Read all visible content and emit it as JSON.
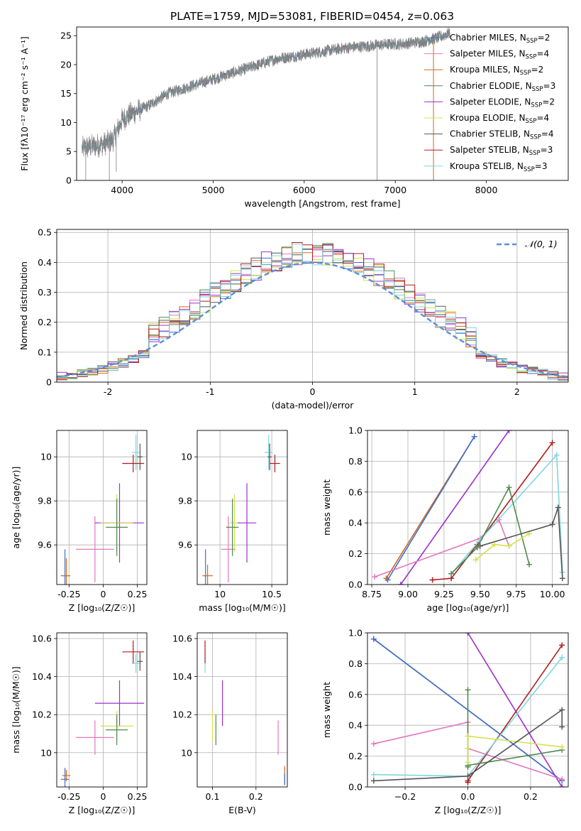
{
  "title": "PLATE=1759, MJD=53081, FIBERID=0454, z=0.063",
  "colors": {
    "chabrier_miles": "#3b6fd4",
    "salpeter_miles": "#e377c2",
    "kroupa_miles": "#d2691e",
    "chabrier_elodie": "#4f8a4f",
    "salpeter_elodie": "#9b30c8",
    "kroupa_elodie": "#d4e24a",
    "chabrier_stelib": "#555555",
    "salpeter_stelib": "#b01c1c",
    "kroupa_stelib": "#7fd6e0",
    "data": "#808080",
    "normal": "#5b8fd9"
  },
  "chart_data": [
    {
      "id": "spectrum",
      "type": "line",
      "title": "PLATE=1759, MJD=53081, FIBERID=0454, z=0.063",
      "xlabel": "wavelength [Angstrom, rest frame]",
      "ylabel": "Flux [fλ10⁻¹⁷ erg cm⁻² s⁻¹ A⁻¹]",
      "xlim": [
        3500,
        8900
      ],
      "ylim": [
        0,
        26.5
      ],
      "xticks": [
        4000,
        5000,
        6000,
        7000,
        8000
      ],
      "yticks": [
        0,
        5,
        10,
        15,
        20,
        25
      ],
      "grid": false,
      "legend_position": "right",
      "legend": [
        {
          "key": "chabrier_miles",
          "label": "Chabrier MILES, N_SSP=2",
          "main": "Chabrier MILES, N",
          "sub": "SSP",
          "tail": "=2"
        },
        {
          "key": "salpeter_miles",
          "label": "Salpeter MILES, N_SSP=4",
          "main": "Salpeter MILES, N",
          "sub": "SSP",
          "tail": "=4"
        },
        {
          "key": "kroupa_miles",
          "label": "Kroupa MILES, N_SSP=2",
          "main": "Kroupa MILES, N",
          "sub": "SSP",
          "tail": "=2"
        },
        {
          "key": "chabrier_elodie",
          "label": "Chabrier ELODIE, N_SSP=3",
          "main": "Chabrier ELODIE, N",
          "sub": "SSP",
          "tail": "=3"
        },
        {
          "key": "salpeter_elodie",
          "label": "Salpeter ELODIE, N_SSP=2",
          "main": "Salpeter ELODIE, N",
          "sub": "SSP",
          "tail": "=2"
        },
        {
          "key": "kroupa_elodie",
          "label": "Kroupa ELODIE, N_SSP=4",
          "main": "Kroupa ELODIE, N",
          "sub": "SSP",
          "tail": "=4"
        },
        {
          "key": "chabrier_stelib",
          "label": "Chabrier STELIB, N_SSP=4",
          "main": "Chabrier STELIB, N",
          "sub": "SSP",
          "tail": "=4"
        },
        {
          "key": "salpeter_stelib",
          "label": "Salpeter STELIB, N_SSP=3",
          "main": "Salpeter STELIB, N",
          "sub": "SSP",
          "tail": "=3"
        },
        {
          "key": "kroupa_stelib",
          "label": "Kroupa STELIB, N_SSP=3",
          "main": "Kroupa STELIB, N",
          "sub": "SSP",
          "tail": "=3"
        }
      ],
      "continuum": {
        "x": [
          3560,
          3700,
          3800,
          3900,
          4000,
          4100,
          4300,
          4500,
          4700,
          4900,
          5100,
          5300,
          5500,
          5700,
          5900,
          6100,
          6300,
          6500,
          6700,
          6900,
          7100,
          7300,
          7500,
          7600
        ],
        "y": [
          5.5,
          6.0,
          6.3,
          7.0,
          10.5,
          11.5,
          13.0,
          15.0,
          16.0,
          17.0,
          18.0,
          19.0,
          20.0,
          21.0,
          21.5,
          22.0,
          22.5,
          23.0,
          23.2,
          23.5,
          23.6,
          24.0,
          24.8,
          25.5
        ]
      },
      "spikes": [
        {
          "x": 3600,
          "bottom": 0
        },
        {
          "x": 3860,
          "bottom": 0
        },
        {
          "x": 3935,
          "bottom": 1.5
        },
        {
          "x": 6800,
          "bottom": 0
        },
        {
          "x": 7420,
          "bottom": 0
        }
      ]
    },
    {
      "id": "residuals",
      "type": "histogram",
      "xlabel": "(data-model)/error",
      "ylabel": "Normed distribution",
      "xlim": [
        -2.5,
        2.5
      ],
      "ylim": [
        0,
        0.51
      ],
      "xticks": [
        -2,
        -1,
        0,
        1,
        2
      ],
      "yticks": [
        0,
        0.1,
        0.2,
        0.3,
        0.4,
        0.5
      ],
      "grid": true,
      "legend_position": "upper right",
      "legend_label": "𝒩(0, 1)",
      "bin_width": 0.1,
      "reference_curve": "standard normal, mean 0, sd 1"
    },
    {
      "id": "age_vs_Z",
      "type": "scatter",
      "xlabel": "Z [log₁₀(Z/Z☉)]",
      "ylabel": "age  [log₁₀(age/yr)]",
      "xlim": [
        -0.34,
        0.32
      ],
      "ylim": [
        9.42,
        10.12
      ],
      "xticks": [
        -0.25,
        0.0,
        0.25
      ],
      "yticks": [
        9.6,
        9.8,
        10.0
      ],
      "grid": true,
      "points": [
        {
          "key": "chabrier_miles",
          "x": -0.28,
          "y": 9.46,
          "xerr": 0.03,
          "yerr": 0.12
        },
        {
          "key": "kroupa_miles",
          "x": -0.27,
          "y": 9.46,
          "xerr": 0.03,
          "yerr": 0.08
        },
        {
          "key": "salpeter_miles",
          "x": -0.06,
          "y": 9.58,
          "xerr": 0.14,
          "yerr": 0.15
        },
        {
          "key": "salpeter_elodie",
          "x": 0.12,
          "y": 9.7,
          "xerr": 0.18,
          "yerr": 0.18
        },
        {
          "key": "kroupa_elodie",
          "x": 0.1,
          "y": 9.7,
          "xerr": 0.12,
          "yerr": 0.13
        },
        {
          "key": "chabrier_elodie",
          "x": 0.1,
          "y": 9.68,
          "xerr": 0.08,
          "yerr": 0.13
        },
        {
          "key": "kroupa_stelib",
          "x": 0.24,
          "y": 10.02,
          "xerr": 0.03,
          "yerr": 0.08
        },
        {
          "key": "chabrier_stelib",
          "x": 0.27,
          "y": 10.0,
          "xerr": 0.02,
          "yerr": 0.06
        },
        {
          "key": "salpeter_stelib",
          "x": 0.22,
          "y": 9.97,
          "xerr": 0.08,
          "yerr": 0.04
        }
      ]
    },
    {
      "id": "age_vs_mass",
      "type": "scatter",
      "xlabel": "mass [log₁₀(M/M☉)]",
      "ylabel": "",
      "xlim": [
        9.78,
        10.65
      ],
      "ylim": [
        9.42,
        10.12
      ],
      "xticks": [
        10.0,
        10.5
      ],
      "yticks": [
        9.6,
        9.8,
        10.0
      ],
      "grid": true,
      "points": [
        {
          "key": "chabrier_miles",
          "x": 9.86,
          "y": 9.46,
          "xerr": 0.02,
          "yerr": 0.12
        },
        {
          "key": "kroupa_miles",
          "x": 9.88,
          "y": 9.46,
          "xerr": 0.05,
          "yerr": 0.05
        },
        {
          "key": "salpeter_miles",
          "x": 10.08,
          "y": 9.58,
          "xerr": 0.07,
          "yerr": 0.15
        },
        {
          "key": "kroupa_elodie",
          "x": 10.14,
          "y": 9.7,
          "xerr": 0.05,
          "yerr": 0.13
        },
        {
          "key": "chabrier_elodie",
          "x": 10.12,
          "y": 9.68,
          "xerr": 0.06,
          "yerr": 0.13
        },
        {
          "key": "salpeter_elodie",
          "x": 10.26,
          "y": 9.7,
          "xerr": 0.09,
          "yerr": 0.18
        },
        {
          "key": "kroupa_stelib",
          "x": 10.47,
          "y": 10.02,
          "xerr": 0.04,
          "yerr": 0.08
        },
        {
          "key": "chabrier_stelib",
          "x": 10.48,
          "y": 10.0,
          "xerr": 0.02,
          "yerr": 0.06
        },
        {
          "key": "salpeter_stelib",
          "x": 10.53,
          "y": 9.97,
          "xerr": 0.05,
          "yerr": 0.04
        }
      ]
    },
    {
      "id": "weight_vs_age",
      "type": "line",
      "xlabel": "age  [log₁₀(age/yr)]",
      "ylabel": "mass weight",
      "xlim": [
        8.72,
        10.11
      ],
      "ylim": [
        0,
        1
      ],
      "xticks": [
        "8.75",
        "9.00",
        "9.25",
        "9.50",
        "9.75",
        "10.00"
      ],
      "yticks": [
        "0.0",
        "0.2",
        "0.4",
        "0.6",
        "0.8",
        "1.0"
      ],
      "grid": true,
      "series": [
        {
          "key": "kroupa_miles",
          "x": [
            8.85,
            9.46
          ],
          "y": [
            0.04,
            0.96
          ]
        },
        {
          "key": "chabrier_miles",
          "x": [
            8.86,
            9.46
          ],
          "y": [
            0.03,
            0.96
          ]
        },
        {
          "key": "salpeter_elodie",
          "x": [
            8.95,
            9.7
          ],
          "y": [
            0.0,
            1.0
          ]
        },
        {
          "key": "salpeter_miles",
          "x": [
            8.77,
            9.5,
            9.63,
            9.7
          ],
          "y": [
            0.05,
            0.3,
            0.42,
            0.25
          ]
        },
        {
          "key": "salpeter_stelib",
          "x": [
            9.17,
            9.3,
            9.48,
            10.0
          ],
          "y": [
            0.03,
            0.04,
            0.26,
            0.92
          ]
        },
        {
          "key": "kroupa_stelib",
          "x": [
            9.3,
            9.5,
            10.03,
            10.07
          ],
          "y": [
            0.07,
            0.29,
            0.84,
            0.08
          ]
        },
        {
          "key": "chabrier_elodie",
          "x": [
            9.3,
            9.48,
            9.7,
            9.84
          ],
          "y": [
            0.07,
            0.24,
            0.63,
            0.13
          ]
        },
        {
          "key": "kroupa_elodie",
          "x": [
            9.47,
            9.6,
            9.7,
            9.84
          ],
          "y": [
            0.16,
            0.26,
            0.25,
            0.33
          ]
        },
        {
          "key": "chabrier_stelib",
          "x": [
            9.5,
            10.0,
            10.04,
            10.07
          ],
          "y": [
            0.25,
            0.39,
            0.5,
            0.04
          ]
        }
      ]
    },
    {
      "id": "mass_vs_Z",
      "type": "scatter",
      "xlabel": "Z [log₁₀(Z/Z☉)]",
      "ylabel": "mass [log₁₀(M/M☉)]",
      "xlim": [
        -0.34,
        0.32
      ],
      "ylim": [
        9.82,
        10.63
      ],
      "xticks": [
        -0.25,
        0.0,
        0.25
      ],
      "yticks": [
        10.0,
        10.2,
        10.4,
        10.6
      ],
      "grid": true,
      "points": [
        {
          "key": "chabrier_miles",
          "x": -0.28,
          "y": 9.86,
          "xerr": 0.03,
          "yerr": 0.06
        },
        {
          "key": "kroupa_miles",
          "x": -0.27,
          "y": 9.88,
          "xerr": 0.03,
          "yerr": 0.03
        },
        {
          "key": "salpeter_miles",
          "x": -0.06,
          "y": 10.08,
          "xerr": 0.14,
          "yerr": 0.09
        },
        {
          "key": "salpeter_elodie",
          "x": 0.12,
          "y": 10.26,
          "xerr": 0.18,
          "yerr": 0.12
        },
        {
          "key": "kroupa_elodie",
          "x": 0.1,
          "y": 10.14,
          "xerr": 0.12,
          "yerr": 0.08
        },
        {
          "key": "chabrier_elodie",
          "x": 0.1,
          "y": 10.12,
          "xerr": 0.08,
          "yerr": 0.08
        },
        {
          "key": "kroupa_stelib",
          "x": 0.24,
          "y": 10.47,
          "xerr": 0.03,
          "yerr": 0.05
        },
        {
          "key": "chabrier_stelib",
          "x": 0.27,
          "y": 10.48,
          "xerr": 0.02,
          "yerr": 0.05
        },
        {
          "key": "salpeter_stelib",
          "x": 0.22,
          "y": 10.53,
          "xerr": 0.08,
          "yerr": 0.06
        }
      ]
    },
    {
      "id": "mass_vs_ebv",
      "type": "scatter",
      "xlabel": "E(B-V)",
      "ylabel": "",
      "xlim": [
        0.065,
        0.272
      ],
      "ylim": [
        9.82,
        10.63
      ],
      "xticks": [
        0.1,
        0.2
      ],
      "yticks": [
        10.0,
        10.2,
        10.4,
        10.6
      ],
      "grid": true,
      "points": [
        {
          "key": "kroupa_stelib",
          "x": 0.083,
          "y": 10.47,
          "xerr": 0,
          "yerr": 0.05
        },
        {
          "key": "salpeter_stelib",
          "x": 0.083,
          "y": 10.53,
          "xerr": 0,
          "yerr": 0.06
        },
        {
          "key": "kroupa_elodie",
          "x": 0.1,
          "y": 10.14,
          "xerr": 0,
          "yerr": 0.08
        },
        {
          "key": "chabrier_elodie",
          "x": 0.108,
          "y": 10.12,
          "xerr": 0,
          "yerr": 0.08
        },
        {
          "key": "salpeter_elodie",
          "x": 0.123,
          "y": 10.26,
          "xerr": 0,
          "yerr": 0.12
        },
        {
          "key": "salpeter_miles",
          "x": 0.251,
          "y": 10.08,
          "xerr": 0,
          "yerr": 0.09
        },
        {
          "key": "kroupa_miles",
          "x": 0.266,
          "y": 9.88,
          "xerr": 0,
          "yerr": 0.05
        },
        {
          "key": "chabrier_miles",
          "x": 0.266,
          "y": 9.86,
          "xerr": 0,
          "yerr": 0.03
        }
      ]
    },
    {
      "id": "weight_vs_Z",
      "type": "line",
      "xlabel": "Z [log₁₀(Z/Z☉)]",
      "ylabel": "mass weight",
      "xlim": [
        -0.32,
        0.32
      ],
      "ylim": [
        0,
        1
      ],
      "xticks": [
        "−0.2",
        "0.0",
        "0.2"
      ],
      "yticks": [
        "0.0",
        "0.2",
        "0.4",
        "0.6",
        "0.8",
        "1.0"
      ],
      "grid": true,
      "series": [
        {
          "key": "kroupa_miles",
          "x": [
            -0.3,
            0.3
          ],
          "y": [
            0.96,
            0.04
          ]
        },
        {
          "key": "chabrier_miles",
          "x": [
            -0.3,
            0.3
          ],
          "y": [
            0.96,
            0.04
          ]
        },
        {
          "key": "salpeter_elodie",
          "x": [
            0.0,
            0.3
          ],
          "y": [
            1.0,
            0.0
          ]
        },
        {
          "key": "salpeter_miles",
          "x": [
            -0.3,
            0.0,
            0.0,
            0.3
          ],
          "y": [
            0.28,
            0.42,
            0.25,
            0.05
          ]
        },
        {
          "key": "salpeter_stelib",
          "x": [
            0.0,
            0.0,
            0.3
          ],
          "y": [
            0.03,
            0.04,
            0.92
          ]
        },
        {
          "key": "kroupa_stelib",
          "x": [
            -0.3,
            0.0,
            0.3
          ],
          "y": [
            0.08,
            0.07,
            0.84
          ]
        },
        {
          "key": "chabrier_elodie",
          "x": [
            0.0,
            0.0,
            0.0,
            0.3
          ],
          "y": [
            0.13,
            0.63,
            0.14,
            0.24
          ]
        },
        {
          "key": "kroupa_elodie",
          "x": [
            0.0,
            0.0,
            0.0,
            0.3
          ],
          "y": [
            0.16,
            0.25,
            0.33,
            0.26
          ]
        },
        {
          "key": "chabrier_stelib",
          "x": [
            -0.3,
            0.0,
            0.3,
            0.3
          ],
          "y": [
            0.04,
            0.07,
            0.5,
            0.39
          ]
        }
      ]
    }
  ]
}
